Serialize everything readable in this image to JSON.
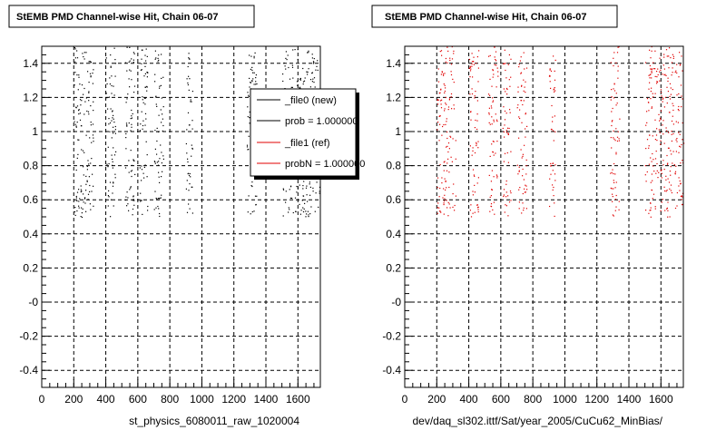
{
  "panels": [
    {
      "title": "StEMB PMD Channel-wise Hit, Chain 06-07",
      "xtitle": "st_physics_6080011_raw_1020004",
      "series_color": "#000000",
      "seed": 17
    },
    {
      "title": "StEMB PMD Channel-wise Hit, Chain 06-07",
      "xtitle": "dev/daq_sl302.ittf/Sat/year_2005/CuCu62_MinBias/",
      "series_color": "#e00000",
      "seed": 91
    }
  ],
  "legend": {
    "entries": [
      {
        "label": "_file0 (new)",
        "color": "#000000"
      },
      {
        "label": "prob = 1.000000",
        "color": "#000000"
      },
      {
        "label": "_file1 (ref)",
        "color": "#e00000"
      },
      {
        "label": "probN = 1.000000",
        "color": "#e00000"
      }
    ]
  },
  "chart_data": [
    {
      "type": "scatter",
      "title": "StEMB PMD Channel-wise Hit, Chain 06-07",
      "xlabel": "st_physics_6080011_raw_1020004",
      "ylabel": "",
      "xlim": [
        0,
        1740
      ],
      "ylim": [
        -0.5,
        1.5
      ],
      "xticks": [
        0,
        200,
        400,
        600,
        800,
        1000,
        1200,
        1400,
        1600
      ],
      "yticks": [
        -0.4,
        -0.2,
        0,
        0.2,
        0.4,
        0.6,
        0.8,
        1,
        1.2,
        1.4
      ],
      "ytick_labels": [
        "-0.4",
        "-0.2",
        "-0",
        "0.2",
        "0.4",
        "0.6",
        "0.8",
        "1",
        "1.2",
        "1.4"
      ],
      "grid": true,
      "legend_position": "top-right",
      "series": [
        {
          "name": "_file0 (new)",
          "color": "#000000",
          "clusters": [
            {
              "x": [
                200,
                320
              ],
              "y": [
                0.5,
                1.5
              ]
            },
            {
              "x": [
                400,
                460
              ],
              "y": [
                0.5,
                1.5
              ]
            },
            {
              "x": [
                520,
                580
              ],
              "y": [
                0.5,
                1.5
              ]
            },
            {
              "x": [
                610,
                660
              ],
              "y": [
                0.5,
                1.5
              ]
            },
            {
              "x": [
                700,
                760
              ],
              "y": [
                0.5,
                1.5
              ]
            },
            {
              "x": [
                900,
                940
              ],
              "y": [
                0.5,
                1.5
              ]
            },
            {
              "x": [
                1280,
                1340
              ],
              "y": [
                0.5,
                1.5
              ]
            },
            {
              "x": [
                1500,
                1740
              ],
              "y": [
                0.5,
                1.5
              ]
            }
          ]
        }
      ]
    },
    {
      "type": "scatter",
      "title": "StEMB PMD Channel-wise Hit, Chain 06-07",
      "xlabel": "dev/daq_sl302.ittf/Sat/year_2005/CuCu62_MinBias/",
      "ylabel": "",
      "xlim": [
        0,
        1740
      ],
      "ylim": [
        -0.5,
        1.5
      ],
      "xticks": [
        0,
        200,
        400,
        600,
        800,
        1000,
        1200,
        1400,
        1600
      ],
      "yticks": [
        -0.4,
        -0.2,
        0,
        0.2,
        0.4,
        0.6,
        0.8,
        1,
        1.2,
        1.4
      ],
      "ytick_labels": [
        "-0.4",
        "-0.2",
        "-0",
        "0.2",
        "0.4",
        "0.6",
        "0.8",
        "1",
        "1.2",
        "1.4"
      ],
      "grid": true,
      "series": [
        {
          "name": "_file1 (ref)",
          "color": "#e00000",
          "clusters": [
            {
              "x": [
                200,
                320
              ],
              "y": [
                0.5,
                1.5
              ]
            },
            {
              "x": [
                400,
                460
              ],
              "y": [
                0.5,
                1.5
              ]
            },
            {
              "x": [
                520,
                580
              ],
              "y": [
                0.5,
                1.5
              ]
            },
            {
              "x": [
                610,
                660
              ],
              "y": [
                0.5,
                1.5
              ]
            },
            {
              "x": [
                700,
                760
              ],
              "y": [
                0.5,
                1.5
              ]
            },
            {
              "x": [
                900,
                940
              ],
              "y": [
                0.5,
                1.5
              ]
            },
            {
              "x": [
                1280,
                1340
              ],
              "y": [
                0.5,
                1.5
              ]
            },
            {
              "x": [
                1500,
                1740
              ],
              "y": [
                0.5,
                1.5
              ]
            }
          ]
        }
      ]
    }
  ]
}
